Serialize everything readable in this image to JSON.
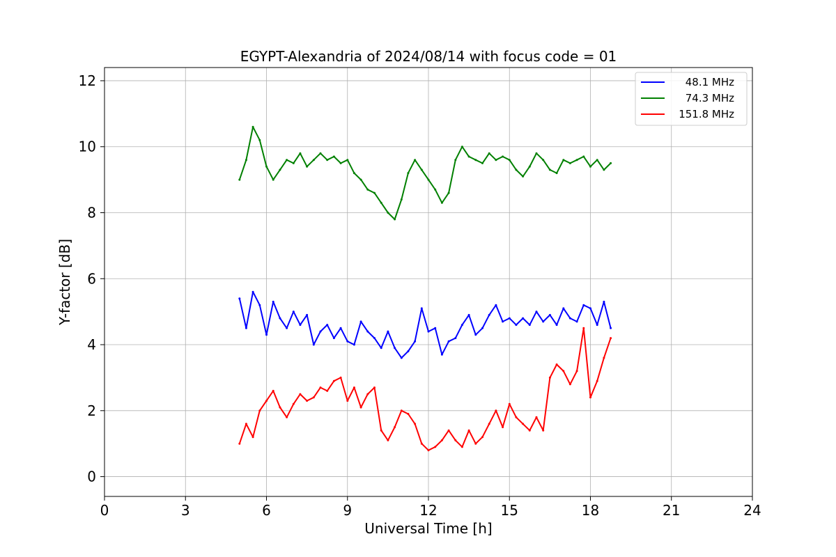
{
  "chart_data": {
    "type": "line",
    "title": "EGYPT-Alexandria of 2024/08/14 with focus code = 01",
    "xlabel": "Universal Time [h]",
    "ylabel": "Y-factor [dB]",
    "xlim": [
      0,
      24
    ],
    "ylim": [
      -0.6,
      12.4
    ],
    "xticks": [
      "0",
      "3",
      "6",
      "9",
      "12",
      "15",
      "18",
      "21",
      "24"
    ],
    "yticks": [
      "0",
      "2",
      "4",
      "6",
      "8",
      "10",
      "12"
    ],
    "grid": true,
    "legend_position": "top-right",
    "series": [
      {
        "name": "48.1 MHz",
        "color": "#0000ff",
        "x": [
          5.0,
          5.25,
          5.5,
          5.75,
          6.0,
          6.25,
          6.5,
          6.75,
          7.0,
          7.25,
          7.5,
          7.75,
          8.0,
          8.25,
          8.5,
          8.75,
          9.0,
          9.25,
          9.5,
          9.75,
          10.0,
          10.25,
          10.5,
          10.75,
          11.0,
          11.25,
          11.5,
          11.75,
          12.0,
          12.25,
          12.5,
          12.75,
          13.0,
          13.25,
          13.5,
          13.75,
          14.0,
          14.25,
          14.5,
          14.75,
          15.0,
          15.25,
          15.5,
          15.75,
          16.0,
          16.25,
          16.5,
          16.75,
          17.0,
          17.25,
          17.5,
          17.75,
          18.0,
          18.25,
          18.5,
          18.75
        ],
        "y": [
          5.4,
          4.5,
          5.6,
          5.2,
          4.3,
          5.3,
          4.8,
          4.5,
          5.0,
          4.6,
          4.9,
          4.0,
          4.4,
          4.6,
          4.2,
          4.5,
          4.1,
          4.0,
          4.7,
          4.4,
          4.2,
          3.9,
          4.4,
          3.9,
          3.6,
          3.8,
          4.1,
          5.1,
          4.4,
          4.5,
          3.7,
          4.1,
          4.2,
          4.6,
          4.9,
          4.3,
          4.5,
          4.9,
          5.2,
          4.7,
          4.8,
          4.6,
          4.8,
          4.6,
          5.0,
          4.7,
          4.9,
          4.6,
          5.1,
          4.8,
          4.7,
          5.2,
          5.1,
          4.6,
          5.3,
          4.5
        ]
      },
      {
        "name": "74.3 MHz",
        "color": "#008000",
        "x": [
          5.0,
          5.25,
          5.5,
          5.75,
          6.0,
          6.25,
          6.5,
          6.75,
          7.0,
          7.25,
          7.5,
          7.75,
          8.0,
          8.25,
          8.5,
          8.75,
          9.0,
          9.25,
          9.5,
          9.75,
          10.0,
          10.25,
          10.5,
          10.75,
          11.0,
          11.25,
          11.5,
          11.75,
          12.0,
          12.25,
          12.5,
          12.75,
          13.0,
          13.25,
          13.5,
          13.75,
          14.0,
          14.25,
          14.5,
          14.75,
          15.0,
          15.25,
          15.5,
          15.75,
          16.0,
          16.25,
          16.5,
          16.75,
          17.0,
          17.25,
          17.5,
          17.75,
          18.0,
          18.25,
          18.5,
          18.75
        ],
        "y": [
          9.0,
          9.6,
          10.6,
          10.2,
          9.4,
          9.0,
          9.3,
          9.6,
          9.5,
          9.8,
          9.4,
          9.6,
          9.8,
          9.6,
          9.7,
          9.5,
          9.6,
          9.2,
          9.0,
          8.7,
          8.6,
          8.3,
          8.0,
          7.8,
          8.4,
          9.2,
          9.6,
          9.3,
          9.0,
          8.7,
          8.3,
          8.6,
          9.6,
          10.0,
          9.7,
          9.6,
          9.5,
          9.8,
          9.6,
          9.7,
          9.6,
          9.3,
          9.1,
          9.4,
          9.8,
          9.6,
          9.3,
          9.2,
          9.6,
          9.5,
          9.6,
          9.7,
          9.4,
          9.6,
          9.3,
          9.5
        ]
      },
      {
        "name": "151.8 MHz",
        "color": "#ff0000",
        "x": [
          5.0,
          5.25,
          5.5,
          5.75,
          6.0,
          6.25,
          6.5,
          6.75,
          7.0,
          7.25,
          7.5,
          7.75,
          8.0,
          8.25,
          8.5,
          8.75,
          9.0,
          9.25,
          9.5,
          9.75,
          10.0,
          10.25,
          10.5,
          10.75,
          11.0,
          11.25,
          11.5,
          11.75,
          12.0,
          12.25,
          12.5,
          12.75,
          13.0,
          13.25,
          13.5,
          13.75,
          14.0,
          14.25,
          14.5,
          14.75,
          15.0,
          15.25,
          15.5,
          15.75,
          16.0,
          16.25,
          16.5,
          16.75,
          17.0,
          17.25,
          17.5,
          17.75,
          18.0,
          18.25,
          18.5,
          18.75
        ],
        "y": [
          1.0,
          1.6,
          1.2,
          2.0,
          2.3,
          2.6,
          2.1,
          1.8,
          2.2,
          2.5,
          2.3,
          2.4,
          2.7,
          2.6,
          2.9,
          3.0,
          2.3,
          2.7,
          2.1,
          2.5,
          2.7,
          1.4,
          1.1,
          1.5,
          2.0,
          1.9,
          1.6,
          1.0,
          0.8,
          0.9,
          1.1,
          1.4,
          1.1,
          0.9,
          1.4,
          1.0,
          1.2,
          1.6,
          2.0,
          1.5,
          2.2,
          1.8,
          1.6,
          1.4,
          1.8,
          1.4,
          3.0,
          3.4,
          3.2,
          2.8,
          3.2,
          4.5,
          2.4,
          2.9,
          3.6,
          4.2
        ]
      }
    ]
  }
}
